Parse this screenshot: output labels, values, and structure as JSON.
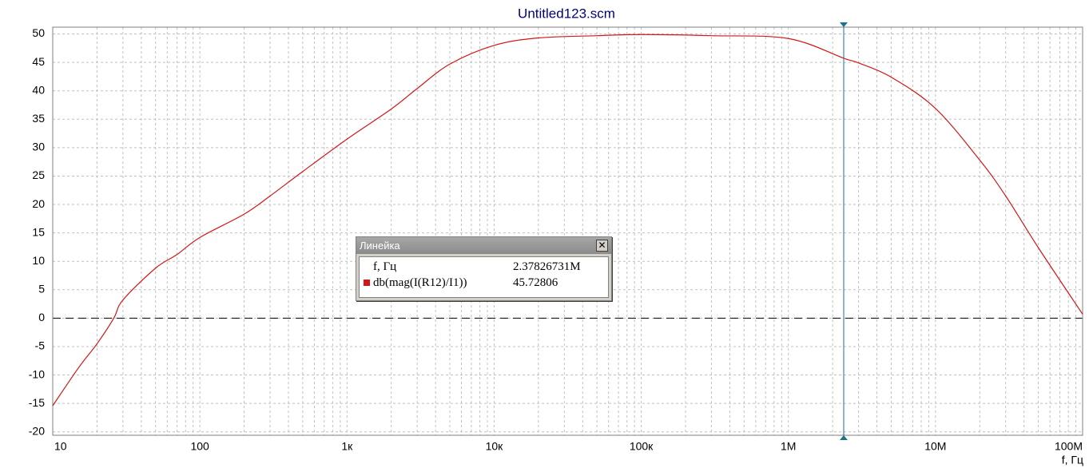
{
  "chart_data": {
    "type": "line",
    "title": "Untitled123.scm",
    "x_label": "f, Гц",
    "xscale": "log",
    "grid": true,
    "x": [
      10,
      15,
      20,
      26,
      30,
      50,
      70,
      100,
      200,
      300,
      500,
      1000,
      2000,
      3000,
      5000,
      10000,
      20000,
      50000,
      100000,
      300000,
      1000000,
      2378267.31,
      3000000,
      5000000,
      10000000,
      20000000,
      30000000,
      50000000,
      100000000
    ],
    "series": [
      {
        "name": "db(mag(I(R12)/I1))",
        "color": "#d01818",
        "values": [
          -15.4,
          -8.7,
          -4.5,
          0,
          3.2,
          8.8,
          11.2,
          14.2,
          18.3,
          21.5,
          25.8,
          31.5,
          36.8,
          40.4,
          44.7,
          48.0,
          49.3,
          49.7,
          49.9,
          49.7,
          49.2,
          45.73,
          44.9,
          42.4,
          36.9,
          27.8,
          21.5,
          12.4,
          0.7
        ]
      }
    ],
    "xlim": [
      10,
      100000000
    ],
    "xticks": [
      10,
      100,
      {
        "value": 1000,
        "label": "1к"
      },
      {
        "value": 10000,
        "label": "10к"
      },
      {
        "value": 100000,
        "label": "100к"
      },
      {
        "value": 1000000,
        "label": "1M"
      },
      {
        "value": 10000000,
        "label": "10M"
      },
      {
        "value": 100000000,
        "label": "100M"
      }
    ],
    "ylim": [
      -20.6,
      51.2
    ],
    "yticks": [
      -20,
      -15,
      -10,
      -5,
      0,
      5,
      10,
      15,
      20,
      25,
      30,
      35,
      40,
      45,
      50
    ],
    "cursor": {
      "x": 2378267.31,
      "y": 45.72806
    },
    "ruler": {
      "title": "Линейка",
      "rows": [
        {
          "name": "f, Гц",
          "value": "2.37826731M"
        },
        {
          "name": "db(mag(I(R12)/I1))",
          "value": "45.72806"
        }
      ]
    }
  }
}
